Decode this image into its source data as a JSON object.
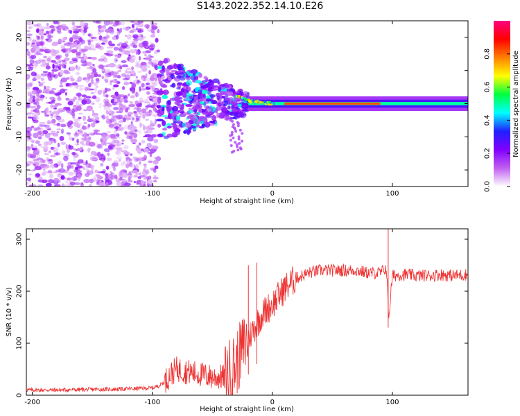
{
  "title": "S143.2022.352.14.10.E26",
  "chart_data": [
    {
      "type": "heatmap",
      "title": "S143.2022.352.14.10.E26",
      "xlabel": "Height of straight line (km)",
      "ylabel": "Frequency (Hz)",
      "xlim": [
        -205,
        163
      ],
      "ylim": [
        -25,
        25
      ],
      "x_ticks": [
        -200,
        -100,
        0,
        100
      ],
      "y_ticks": [
        -20,
        -10,
        0,
        10,
        20
      ],
      "colorbar": {
        "label": "Normalized spectral amplitude",
        "range": [
          0,
          1
        ],
        "ticks": [
          "0.0",
          "0.2",
          "0.4",
          "0.6",
          "0.8"
        ],
        "colors": [
          "#ffffff",
          "#c060f0",
          "#8000ff",
          "#2020ff",
          "#00ffff",
          "#00ff40",
          "#ffff00",
          "#ff8000",
          "#ff0000",
          "#ff0080"
        ]
      },
      "grid": false,
      "features": {
        "noise_region_x": [
          -205,
          -95
        ],
        "transition_region_x": [
          -95,
          -20
        ],
        "carrier_line_frequency_hz": 0,
        "carrier_start_x": -20,
        "peak_band_x": [
          10,
          90
        ]
      }
    },
    {
      "type": "line",
      "xlabel": "Height of straight line (km)",
      "ylabel": "SNR (10 * v/v)",
      "xlim": [
        -205,
        163
      ],
      "ylim": [
        0,
        320
      ],
      "x_ticks": [
        -200,
        -100,
        0,
        100
      ],
      "y_ticks": [
        0,
        100,
        200,
        300
      ],
      "grid": false,
      "color": "#ee3333",
      "series": [
        {
          "x": [
            -205,
            -180,
            -150,
            -120,
            -100,
            -95,
            -90,
            -85,
            -80,
            -70,
            -60,
            -50,
            -40,
            -30,
            -25,
            -20,
            -15,
            -10,
            -5,
            0,
            5,
            10,
            20,
            30,
            40,
            50,
            60,
            70,
            80,
            90,
            95,
            97,
            100,
            110,
            120,
            130,
            140,
            150,
            163
          ],
          "values": [
            10,
            10,
            11,
            12,
            14,
            18,
            25,
            40,
            50,
            45,
            40,
            35,
            35,
            60,
            90,
            110,
            130,
            150,
            165,
            175,
            190,
            205,
            225,
            235,
            240,
            240,
            240,
            240,
            235,
            235,
            245,
            150,
            230,
            232,
            230,
            230,
            232,
            230,
            232
          ]
        }
      ]
    }
  ]
}
